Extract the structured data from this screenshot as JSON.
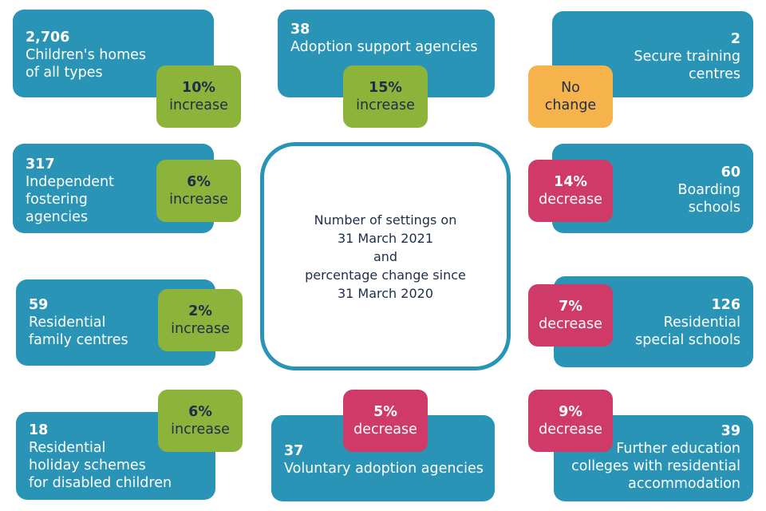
{
  "title": "Number of settings on\n31 March 2021\nand\npercentage change since\n31 March 2020",
  "colors": {
    "card": "#2a94b6",
    "increase": "#8db43a",
    "decrease": "#cf3a69",
    "no_change": "#f6b34c",
    "text_dark": "#1e2d4a"
  },
  "settings": [
    {
      "count": "2,706",
      "label": "Children's homes\nof all types",
      "change_main": "10%",
      "change_sub": "increase",
      "change_type": "increase"
    },
    {
      "count": "38",
      "label": "Adoption support agencies",
      "change_main": "15%",
      "change_sub": "increase",
      "change_type": "increase"
    },
    {
      "count": "2",
      "label": "Secure training\ncentres",
      "change_main": "No",
      "change_sub": "change",
      "change_type": "no-change"
    },
    {
      "count": "317",
      "label": "Independent\nfostering\nagencies",
      "change_main": "6%",
      "change_sub": "increase",
      "change_type": "increase"
    },
    {
      "count": "60",
      "label": "Boarding\nschools",
      "change_main": "14%",
      "change_sub": "decrease",
      "change_type": "decrease"
    },
    {
      "count": "59",
      "label": "Residential\nfamily centres",
      "change_main": "2%",
      "change_sub": "increase",
      "change_type": "increase"
    },
    {
      "count": "126",
      "label": "Residential\nspecial schools",
      "change_main": "7%",
      "change_sub": "decrease",
      "change_type": "decrease"
    },
    {
      "count": "18",
      "label": "Residential\nholiday schemes\nfor disabled children",
      "change_main": "6%",
      "change_sub": "increase",
      "change_type": "increase"
    },
    {
      "count": "37",
      "label": "Voluntary adoption agencies",
      "change_main": "5%",
      "change_sub": "decrease",
      "change_type": "decrease"
    },
    {
      "count": "39",
      "label": "Further education\ncolleges with residential\naccommodation",
      "change_main": "9%",
      "change_sub": "decrease",
      "change_type": "decrease"
    }
  ]
}
